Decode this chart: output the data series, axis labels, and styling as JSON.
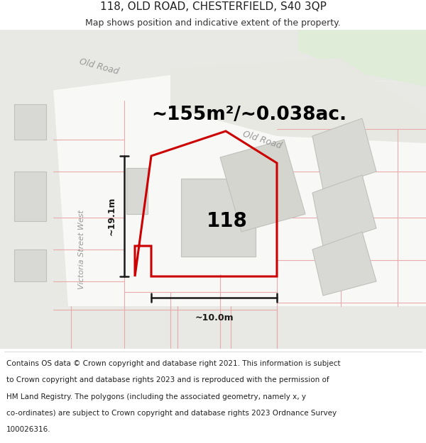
{
  "title": "118, OLD ROAD, CHESTERFIELD, S40 3QP",
  "subtitle": "Map shows position and indicative extent of the property.",
  "area_text": "~155m²/~0.038ac.",
  "property_number": "118",
  "dim_vertical": "~19.1m",
  "dim_horizontal": "~10.0m",
  "footer_lines": [
    "Contains OS data © Crown copyright and database right 2021. This information is subject",
    "to Crown copyright and database rights 2023 and is reproduced with the permission of",
    "HM Land Registry. The polygons (including the associated geometry, namely x, y",
    "co-ordinates) are subject to Crown copyright and database rights 2023 Ordnance Survey",
    "100026316."
  ],
  "map_bg": "#f7f7f5",
  "road_surface": "#e8e8e4",
  "road_edge": "#cccccc",
  "cadastral_color": "#e8aaaa",
  "building_fill": "#d8d8d4",
  "building_edge": "#c0c0bc",
  "green_fill": "#deecd8",
  "property_color": "#cc0000",
  "dim_color": "#1a1a1a",
  "label_color": "#999999",
  "title_fontsize": 11,
  "subtitle_fontsize": 9,
  "area_fontsize": 19,
  "number_fontsize": 20,
  "dim_fontsize": 9,
  "road_label_fontsize": 9,
  "footer_fontsize": 7.5
}
